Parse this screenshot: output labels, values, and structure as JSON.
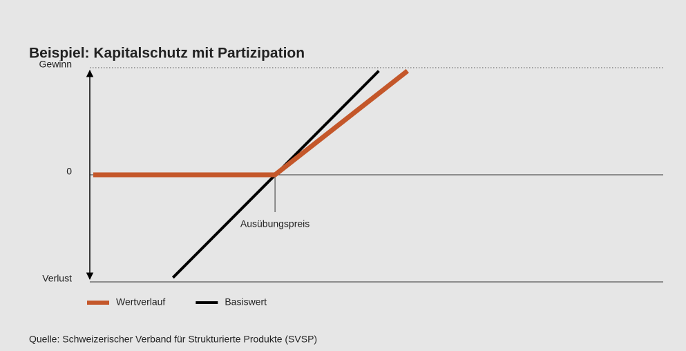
{
  "chart_data": {
    "type": "line",
    "title": "Beispiel: Kapitalschutz mit Partizipation",
    "source": "Quelle: Schweizerischer Verband für Strukturierte Produkte (SVSP)",
    "xlim": [
      0,
      100
    ],
    "ylim": [
      -1,
      1
    ],
    "yticks": [
      {
        "value": 1,
        "label": "Gewinn"
      },
      0,
      {
        "value": -1,
        "label": "Verlust"
      }
    ],
    "series": [
      {
        "name": "Wertverlauf",
        "color": "#c4572a",
        "x": [
          0.6,
          32.3,
          55.4
        ],
        "values": [
          0,
          0,
          0.97
        ]
      },
      {
        "name": "Basiswert",
        "color": "#000000",
        "x": [
          14.5,
          50.4
        ],
        "values": [
          -0.96,
          0.97
        ]
      }
    ],
    "annotations": [
      {
        "text": "Ausübungspreis",
        "x": 32.3,
        "y": 0
      }
    ]
  }
}
